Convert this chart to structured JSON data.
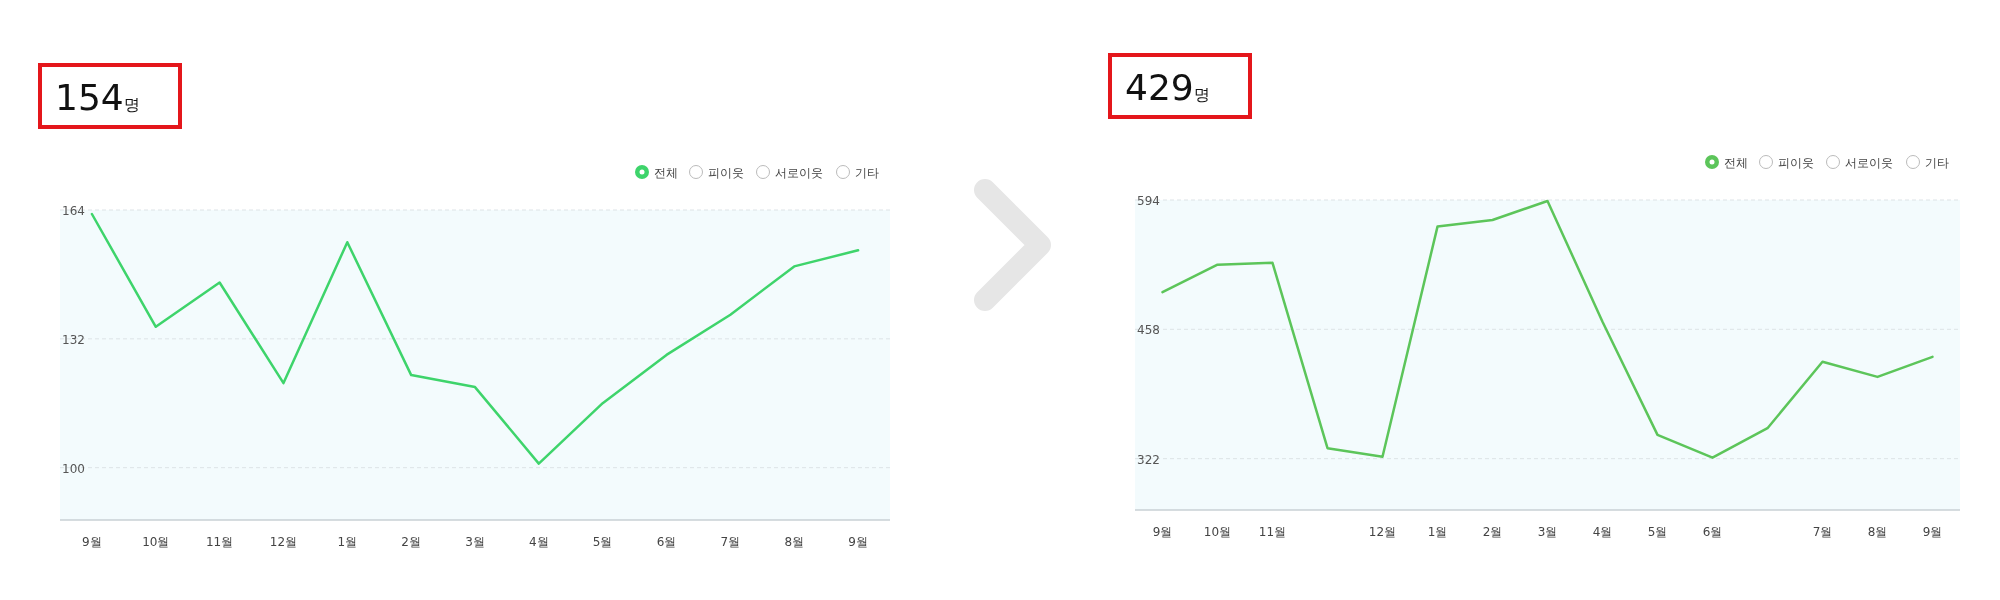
{
  "chart_data": [
    {
      "type": "line",
      "title": "154명",
      "categories": [
        "9월",
        "10월",
        "11월",
        "12월",
        "1월",
        "2월",
        "3월",
        "4월",
        "5월",
        "6월",
        "7월",
        "8월",
        "9월"
      ],
      "series": [
        {
          "name": "전체",
          "color": "#3ed46b",
          "values": [
            163,
            135,
            146,
            121,
            156,
            123,
            120,
            101,
            116,
            128,
            138,
            150,
            154
          ]
        }
      ],
      "ylim": [
        87,
        164
      ],
      "yticks": [
        100,
        132,
        164
      ],
      "grid": "y",
      "legend": "top right",
      "annotations": [
        "피이웃",
        "서로이웃",
        "기타"
      ]
    },
    {
      "type": "line",
      "title": "429명",
      "categories": [
        "9월",
        "10월",
        "11월",
        null,
        "12월",
        "1월",
        "2월",
        "3월",
        "4월",
        "5월",
        "6월",
        null,
        "7월",
        "8월",
        "9월"
      ],
      "series": [
        {
          "name": "전체",
          "color": "#5cc55a",
          "values": [
            497,
            526,
            528,
            333,
            324,
            566,
            573,
            593,
            466,
            347,
            323,
            354,
            424,
            408,
            429
          ]
        }
      ],
      "ylim": [
        268,
        594
      ],
      "yticks": [
        322,
        458,
        594
      ],
      "grid": "y",
      "legend": "top right",
      "annotations": [
        "피이웃",
        "서로이웃",
        "기타"
      ]
    }
  ]
}
